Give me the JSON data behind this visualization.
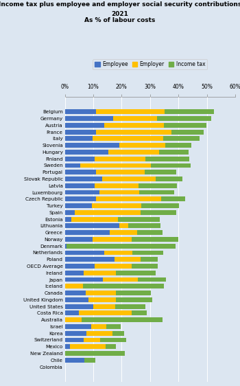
{
  "title_line1": "Income tax plus employee and employer social security contributions",
  "title_line2": "2021",
  "title_line3": "As % of labour costs",
  "countries": [
    "Belgium",
    "Germany",
    "Austria",
    "France",
    "Italy",
    "Slovenia",
    "Hungary",
    "Finland",
    "Sweden",
    "Portugal",
    "Slovak Republic",
    "Latvia",
    "Luxembourg",
    "Czech Republic",
    "Turkey",
    "Spain",
    "Estonia",
    "Lithuania",
    "Greece",
    "Norway",
    "Denmark",
    "Netherlands",
    "Poland",
    "OECD Average",
    "Ireland",
    "Japan",
    "Iceland",
    "Canada",
    "United Kingdom",
    "United States",
    "Costa Rica",
    "Australia",
    "Israel",
    "Korea",
    "Switzerland",
    "Mexico",
    "New Zealand",
    "Chile",
    "Colombia"
  ],
  "employee": [
    10.9,
    17.1,
    14.0,
    10.9,
    9.7,
    19.2,
    15.4,
    10.5,
    5.4,
    11.0,
    13.2,
    10.6,
    12.2,
    11.1,
    9.6,
    3.4,
    2.4,
    19.3,
    15.9,
    9.7,
    0.5,
    13.9,
    17.4,
    10.5,
    6.6,
    13.5,
    0.0,
    7.3,
    8.3,
    10.0,
    4.9,
    0.0,
    9.2,
    7.7,
    6.7,
    1.7,
    0.0,
    7.0,
    0.0
  ],
  "employer": [
    24.2,
    15.3,
    20.9,
    26.7,
    24.9,
    16.1,
    17.9,
    17.8,
    24.8,
    17.2,
    18.8,
    15.3,
    14.0,
    22.8,
    17.3,
    23.4,
    16.4,
    3.1,
    9.5,
    13.9,
    0.0,
    9.9,
    9.3,
    13.0,
    11.3,
    12.2,
    6.4,
    10.6,
    9.8,
    7.7,
    18.7,
    5.8,
    5.4,
    9.0,
    5.7,
    12.6,
    0.0,
    0.0,
    0.0
  ],
  "income_tax": [
    17.5,
    19.2,
    14.9,
    11.4,
    12.8,
    9.3,
    10.4,
    15.5,
    14.2,
    11.1,
    9.5,
    13.6,
    12.4,
    8.5,
    13.4,
    12.5,
    14.7,
    11.3,
    9.0,
    16.3,
    38.4,
    10.9,
    5.9,
    9.3,
    14.1,
    9.8,
    28.5,
    12.3,
    12.6,
    10.7,
    5.2,
    28.6,
    5.0,
    4.1,
    9.2,
    3.7,
    21.2,
    3.8,
    0.0
  ],
  "colors": {
    "employee": "#4472C4",
    "employer": "#FFC000",
    "income_tax": "#70AD47"
  },
  "xlim": [
    0,
    60
  ],
  "xticks": [
    0,
    10,
    20,
    30,
    40,
    50,
    60
  ],
  "xtick_labels": [
    "0%",
    "10%",
    "20%",
    "30%",
    "40%",
    "50%",
    "60%"
  ],
  "background_color": "#dce6f1",
  "bar_height": 0.7
}
